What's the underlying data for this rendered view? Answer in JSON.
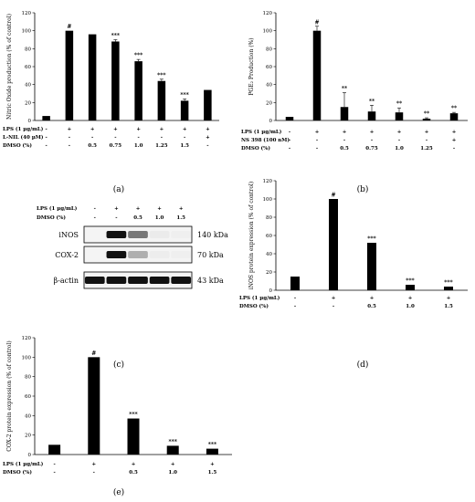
{
  "panel_labels": [
    "(a)",
    "(b)",
    "(c)",
    "(d)",
    "(e)"
  ],
  "chart_data": [
    {
      "type": "bar",
      "panel": "(a)",
      "title": "",
      "xlabel": "",
      "ylabel": "Nitric Oxide production (% of control)",
      "ylim": [
        0,
        120
      ],
      "yticks": [
        0,
        20,
        40,
        60,
        80,
        100,
        120
      ],
      "values": [
        5,
        100,
        96,
        88,
        66,
        44,
        22,
        34
      ],
      "errors": [
        0,
        0,
        0,
        2,
        2,
        2,
        2,
        0
      ],
      "significance": [
        "",
        "#",
        "",
        "***",
        "***",
        "***",
        "***",
        ""
      ],
      "condition_rows": [
        {
          "label": "LPS (1 µg/mL)",
          "cells": [
            "-",
            "+",
            "+",
            "+",
            "+",
            "+",
            "+",
            "+"
          ]
        },
        {
          "label": "L-NIL (40 µM)",
          "cells": [
            "-",
            "-",
            "-",
            "-",
            "-",
            "-",
            "-",
            "+"
          ]
        },
        {
          "label": "DMSO (%)",
          "cells": [
            "-",
            "-",
            "0.5",
            "0.75",
            "1.0",
            "1.25",
            "1.5",
            "-"
          ]
        }
      ]
    },
    {
      "type": "bar",
      "panel": "(b)",
      "title": "",
      "xlabel": "",
      "ylabel": "PGE₂ Production (%)",
      "ylim": [
        0,
        120
      ],
      "yticks": [
        0,
        20,
        40,
        60,
        80,
        100,
        120
      ],
      "values": [
        4,
        100,
        15,
        10,
        9,
        2,
        8
      ],
      "errors": [
        0,
        5,
        16,
        7,
        5,
        1,
        1
      ],
      "significance": [
        "",
        "#",
        "**",
        "**",
        "**",
        "**",
        "**"
      ],
      "condition_rows": [
        {
          "label": "LPS (1 µg/mL)",
          "cells": [
            "-",
            "+",
            "+",
            "+",
            "+",
            "+",
            "+"
          ]
        },
        {
          "label": "NS 398 (100 nM)",
          "cells": [
            "-",
            "-",
            "-",
            "-",
            "-",
            "-",
            "+"
          ]
        },
        {
          "label": "DMSO (%)",
          "cells": [
            "-",
            "-",
            "0.5",
            "0.75",
            "1.0",
            "1.25",
            "-"
          ]
        }
      ]
    },
    {
      "type": "bar",
      "panel": "(d)",
      "title": "",
      "xlabel": "",
      "ylabel": "iNOS protein expression (% of control)",
      "ylim": [
        0,
        120
      ],
      "yticks": [
        0,
        20,
        40,
        60,
        80,
        100,
        120
      ],
      "values": [
        15,
        100,
        52,
        6,
        4
      ],
      "errors": [
        0,
        0,
        0,
        0,
        0
      ],
      "significance": [
        "",
        "#",
        "***",
        "***",
        "***"
      ],
      "condition_rows": [
        {
          "label": "LPS (1 µg/mL)",
          "cells": [
            "-",
            "+",
            "+",
            "+",
            "+"
          ]
        },
        {
          "label": "DMSO (%)",
          "cells": [
            "-",
            "-",
            "0.5",
            "1.0",
            "1.5"
          ]
        }
      ]
    },
    {
      "type": "bar",
      "panel": "(e)",
      "title": "",
      "xlabel": "",
      "ylabel": "COX-2 protein expression (% of control)",
      "ylim": [
        0,
        120
      ],
      "yticks": [
        0,
        20,
        40,
        60,
        80,
        100,
        120
      ],
      "values": [
        10,
        100,
        37,
        9,
        6
      ],
      "errors": [
        0,
        0,
        0,
        0,
        0
      ],
      "significance": [
        "",
        "#",
        "***",
        "***",
        "***"
      ],
      "condition_rows": [
        {
          "label": "LPS (1 µg/mL)",
          "cells": [
            "-",
            "+",
            "+",
            "+",
            "+"
          ]
        },
        {
          "label": "DMSO (%)",
          "cells": [
            "-",
            "-",
            "0.5",
            "1.0",
            "1.5"
          ]
        }
      ]
    }
  ],
  "western_blot": {
    "panel": "(c)",
    "conditions": [
      {
        "label": "LPS (1 µg/mL)",
        "cells": [
          "-",
          "+",
          "+",
          "+",
          "+"
        ]
      },
      {
        "label": "DMSO (%)",
        "cells": [
          "-",
          "-",
          "0.5",
          "1.0",
          "1.5"
        ]
      }
    ],
    "rows": [
      {
        "name": "iNOS",
        "size": "140 kDa",
        "intensity": [
          0,
          1,
          0.55,
          0.04,
          0.02
        ]
      },
      {
        "name": "COX-2",
        "size": "70 kDa",
        "intensity": [
          0,
          1,
          0.3,
          0.03,
          0.02
        ]
      },
      {
        "name": "β-actin",
        "size": "43 kDa",
        "intensity": [
          1,
          1,
          1,
          1,
          1
        ]
      }
    ],
    "colors": {
      "band": "#111111",
      "background": "#f4f4f4"
    }
  },
  "colors": {
    "bar": "#000000",
    "axis": "#000000"
  }
}
